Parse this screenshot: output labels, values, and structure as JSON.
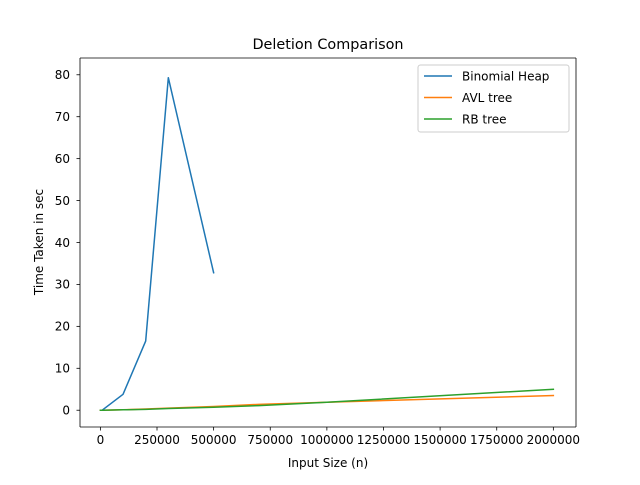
{
  "chart_data": {
    "type": "line",
    "title": "Deletion Comparison",
    "xlabel": "Input Size (n)",
    "ylabel": "Time Taken in sec",
    "xlim": [
      -90000,
      2100000
    ],
    "ylim": [
      -4,
      84
    ],
    "xticks": [
      0,
      250000,
      500000,
      750000,
      1000000,
      1250000,
      1500000,
      1750000,
      2000000
    ],
    "xtick_labels": [
      "0",
      "250000",
      "500000",
      "750000",
      "1000000",
      "1250000",
      "1500000",
      "1750000",
      "2000000"
    ],
    "yticks": [
      0,
      10,
      20,
      30,
      40,
      50,
      60,
      70,
      80
    ],
    "ytick_labels": [
      "0",
      "10",
      "20",
      "30",
      "40",
      "50",
      "60",
      "70",
      "80"
    ],
    "grid": false,
    "legend_position": "top-right",
    "series": [
      {
        "name": "Binomial Heap",
        "color": "#1f77b4",
        "x": [
          10000,
          100000,
          200000,
          300000,
          500000
        ],
        "y": [
          0.1,
          3.8,
          16.5,
          79.3,
          32.8
        ]
      },
      {
        "name": "AVL tree",
        "color": "#ff7f0e",
        "x": [
          0,
          10000,
          100000,
          200000,
          300000,
          500000,
          700000,
          1000000,
          2000000
        ],
        "y": [
          0.0,
          0.0,
          0.1,
          0.3,
          0.5,
          0.9,
          1.4,
          1.9,
          3.5
        ]
      },
      {
        "name": "RB tree",
        "color": "#2ca02c",
        "x": [
          0,
          10000,
          100000,
          200000,
          300000,
          500000,
          700000,
          1000000,
          2000000
        ],
        "y": [
          0.0,
          0.0,
          0.1,
          0.2,
          0.4,
          0.7,
          1.1,
          1.9,
          5.0
        ]
      }
    ]
  }
}
